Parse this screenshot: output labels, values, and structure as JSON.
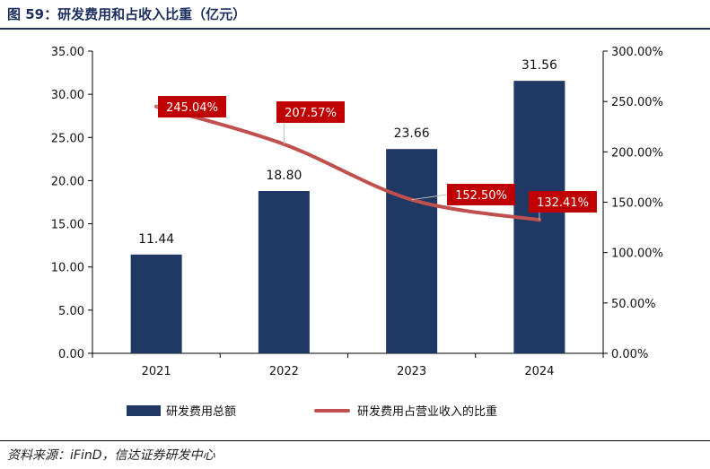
{
  "figure": {
    "title": "图 59：研发费用和占收入比重（亿元）",
    "source": "资料来源：iFinD，信达证券研发中心"
  },
  "chart_data": {
    "type": "bar",
    "categories": [
      "2021",
      "2022",
      "2023",
      "2024"
    ],
    "series": [
      {
        "name": "研发费用总额",
        "type": "bar",
        "axis": "left",
        "values": [
          11.44,
          18.8,
          23.66,
          31.56
        ],
        "labels": [
          "11.44",
          "18.80",
          "23.66",
          "31.56"
        ],
        "color": "#1f3864"
      },
      {
        "name": "研发费用占营业收入的比重",
        "type": "line",
        "axis": "right",
        "values": [
          245.04,
          207.57,
          152.5,
          132.41
        ],
        "labels": [
          "245.04%",
          "207.57%",
          "152.50%",
          "132.41%"
        ],
        "color": "#c0504d",
        "label_bg": "#c00000"
      }
    ],
    "left_axis": {
      "ylim": [
        0,
        35
      ],
      "ticks": [
        "0.00",
        "5.00",
        "10.00",
        "15.00",
        "20.00",
        "25.00",
        "30.00",
        "35.00"
      ]
    },
    "right_axis": {
      "ylim": [
        0,
        300
      ],
      "ticks": [
        "0.00%",
        "50.00%",
        "100.00%",
        "150.00%",
        "200.00%",
        "250.00%",
        "300.00%"
      ]
    },
    "legend_position": "bottom",
    "grid": false
  }
}
